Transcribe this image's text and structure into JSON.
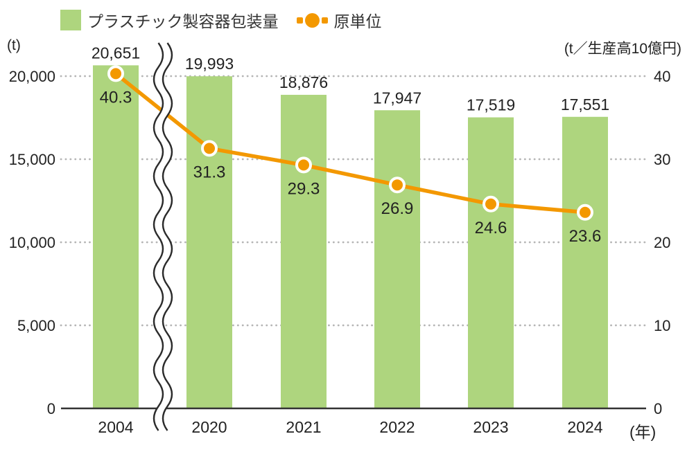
{
  "legend": {
    "items": [
      {
        "label": "プラスチック製容器包装量",
        "marker": "bar-swatch"
      },
      {
        "label": "原単位",
        "marker": "line-dot"
      }
    ]
  },
  "colors": {
    "bar": "#aed57e",
    "line": "#f39800",
    "grid": "#b5b5b5",
    "axis": "#333333",
    "text": "#222222",
    "marker_ring": "#ffffff"
  },
  "chart_data": {
    "type": "bar+line",
    "title": "",
    "categories": [
      "2004",
      "2020",
      "2021",
      "2022",
      "2023",
      "2024"
    ],
    "x_unit": "(年)",
    "axis_break": "wavy break between 2004 and 2020",
    "grid": "dotted horizontal gridlines",
    "legend_position": "top-left",
    "series": [
      {
        "name": "プラスチック製容器包装量",
        "type": "bar",
        "axis": "left",
        "values": [
          20651,
          19993,
          18876,
          17947,
          17519,
          17551
        ],
        "labels": [
          "20,651",
          "19,993",
          "18,876",
          "17,947",
          "17,519",
          "17,551"
        ],
        "color": "#aed57e"
      },
      {
        "name": "原単位",
        "type": "line",
        "axis": "right",
        "values": [
          40.3,
          31.3,
          29.3,
          26.9,
          24.6,
          23.6
        ],
        "labels": [
          "40.3",
          "31.3",
          "29.3",
          "26.9",
          "24.6",
          "23.6"
        ],
        "color": "#f39800"
      }
    ],
    "left_axis": {
      "unit": "(t)",
      "min": 0,
      "max": 20000,
      "ticks": [
        0,
        5000,
        10000,
        15000,
        20000
      ],
      "tick_labels": [
        "0",
        "5,000",
        "10,000",
        "15,000",
        "20,000"
      ]
    },
    "right_axis": {
      "unit": "(t／生産高10億円)",
      "min": 0,
      "max": 40,
      "ticks": [
        0,
        10,
        20,
        30,
        40
      ],
      "tick_labels": [
        "0",
        "10",
        "20",
        "30",
        "40"
      ]
    }
  }
}
